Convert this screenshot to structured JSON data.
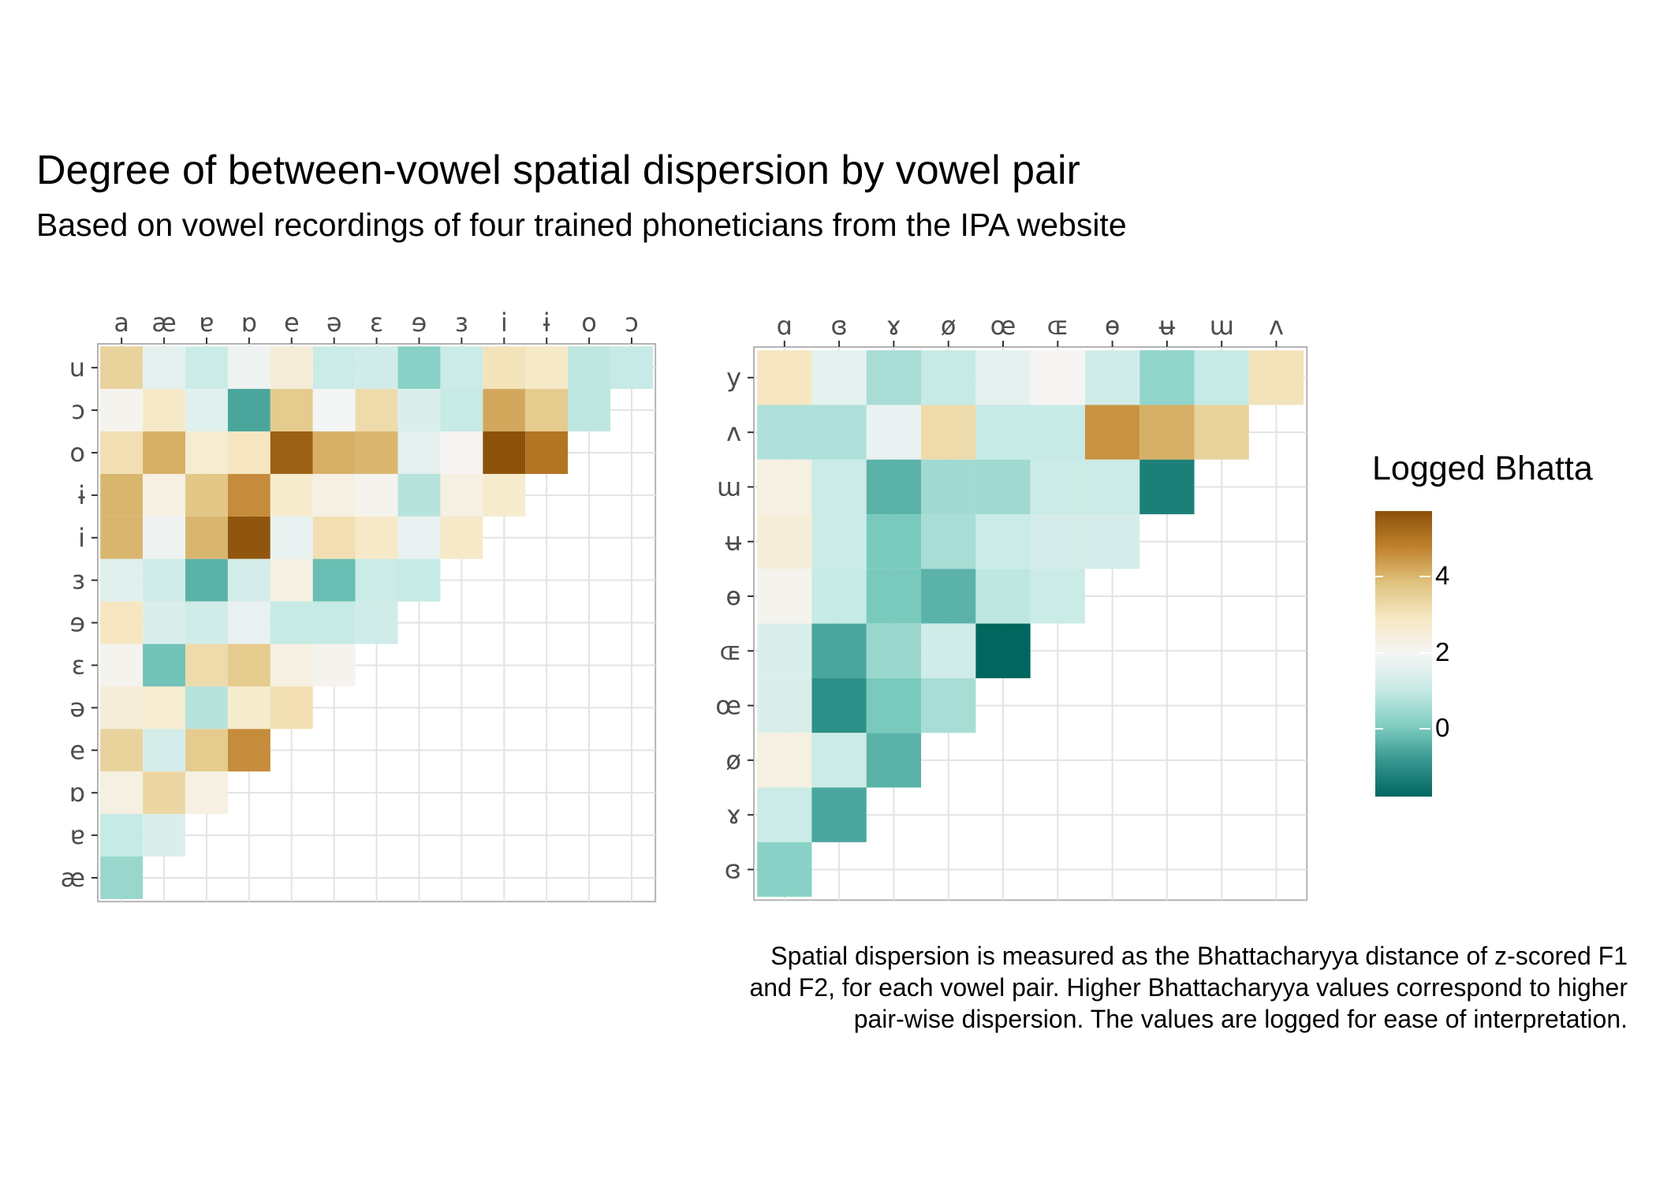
{
  "title": "Degree of between-vowel spatial dispersion by vowel pair",
  "subtitle": "Based on vowel recordings of four trained phoneticians from the IPA website",
  "legend": {
    "title": "Logged Bhatta",
    "ticks": [
      4,
      2,
      0
    ],
    "range": [
      -1.8,
      5.7
    ],
    "colors": [
      "#01665e",
      "#35978f",
      "#80cdc1",
      "#c7eae5",
      "#f5f5f5",
      "#f6e8c3",
      "#dfc27d",
      "#bf812d",
      "#8c510a"
    ]
  },
  "caption": [
    "Spatial dispersion is measured as the Bhattacharyya distance of z-scored F1",
    "and F2, for each vowel pair. Higher Bhattacharyya values correspond to higher",
    "pair-wise dispersion. The values are logged for ease of interpretation."
  ],
  "chart_data": [
    {
      "type": "heatmap",
      "title": "",
      "x": [
        "a",
        "æ",
        "ɐ",
        "ɒ",
        "e",
        "ə",
        "ɛ",
        "ɘ",
        "ɜ",
        "i",
        "ɨ",
        "o",
        "ɔ"
      ],
      "y": [
        "u",
        "ɔ",
        "o",
        "ɨ",
        "i",
        "ɜ",
        "ɘ",
        "ɛ",
        "ə",
        "e",
        "ɒ",
        "ɐ",
        "æ"
      ],
      "values": [
        [
          3.4,
          1.6,
          1.1,
          1.8,
          2.5,
          1.1,
          1.2,
          0.2,
          1.1,
          3.0,
          2.8,
          0.9,
          1.0
        ],
        [
          2.1,
          2.8,
          1.5,
          -0.6,
          3.6,
          1.9,
          3.2,
          1.4,
          1.0,
          4.2,
          3.6,
          0.9,
          null
        ],
        [
          3.1,
          4.1,
          2.6,
          2.9,
          5.4,
          4.1,
          4.0,
          1.6,
          2.0,
          5.7,
          5.0,
          null,
          null
        ],
        [
          4.0,
          2.3,
          3.7,
          4.6,
          2.7,
          2.3,
          2.1,
          0.8,
          2.3,
          2.7,
          null,
          null,
          null
        ],
        [
          4.0,
          1.8,
          4.0,
          5.6,
          1.7,
          3.1,
          2.8,
          1.7,
          2.8,
          null,
          null,
          null,
          null
        ],
        [
          1.5,
          1.2,
          -0.4,
          1.3,
          2.3,
          -0.2,
          1.1,
          1.0,
          null,
          null,
          null,
          null,
          null
        ],
        [
          2.9,
          1.4,
          1.2,
          1.7,
          1.0,
          1.0,
          1.2,
          null,
          null,
          null,
          null,
          null,
          null
        ],
        [
          2.1,
          -0.1,
          3.2,
          3.6,
          2.3,
          2.1,
          null,
          null,
          null,
          null,
          null,
          null,
          null
        ],
        [
          2.5,
          2.6,
          0.8,
          2.7,
          3.1,
          null,
          null,
          null,
          null,
          null,
          null,
          null,
          null
        ],
        [
          3.4,
          1.3,
          3.6,
          4.6,
          null,
          null,
          null,
          null,
          null,
          null,
          null,
          null,
          null
        ],
        [
          2.3,
          3.3,
          2.3,
          null,
          null,
          null,
          null,
          null,
          null,
          null,
          null,
          null,
          null
        ],
        [
          1.0,
          1.4,
          null,
          null,
          null,
          null,
          null,
          null,
          null,
          null,
          null,
          null,
          null
        ],
        [
          0.4,
          null,
          null,
          null,
          null,
          null,
          null,
          null,
          null,
          null,
          null,
          null,
          null
        ]
      ]
    },
    {
      "type": "heatmap",
      "title": "",
      "x": [
        "ɑ",
        "ɞ",
        "ɤ",
        "ø",
        "œ",
        "ɶ",
        "ɵ",
        "ʉ",
        "ɯ",
        "ʌ"
      ],
      "y": [
        "y",
        "ʌ",
        "ɯ",
        "ʉ",
        "ɵ",
        "ɶ",
        "œ",
        "ø",
        "ɤ",
        "ɞ"
      ],
      "values": [
        [
          2.9,
          1.6,
          0.6,
          1.0,
          1.6,
          2.0,
          1.2,
          0.3,
          1.0,
          3.0
        ],
        [
          0.7,
          0.7,
          1.7,
          3.2,
          1.0,
          1.0,
          4.5,
          4.1,
          3.4,
          null
        ],
        [
          2.3,
          1.1,
          -0.4,
          0.5,
          0.5,
          1.1,
          1.1,
          -1.3,
          null,
          null
        ],
        [
          2.5,
          1.1,
          0.0,
          0.6,
          1.1,
          1.3,
          1.3,
          null,
          null,
          null
        ],
        [
          2.1,
          1.0,
          0.0,
          -0.4,
          0.9,
          1.1,
          null,
          null,
          null,
          null
        ],
        [
          1.4,
          -0.6,
          0.4,
          1.2,
          -1.8,
          null,
          null,
          null,
          null,
          null
        ],
        [
          1.4,
          -1.0,
          0.0,
          0.6,
          null,
          null,
          null,
          null,
          null,
          null
        ],
        [
          2.3,
          1.1,
          -0.4,
          null,
          null,
          null,
          null,
          null,
          null,
          null
        ],
        [
          1.1,
          -0.6,
          null,
          null,
          null,
          null,
          null,
          null,
          null,
          null
        ],
        [
          0.2,
          null,
          null,
          null,
          null,
          null,
          null,
          null,
          null,
          null
        ]
      ]
    }
  ]
}
